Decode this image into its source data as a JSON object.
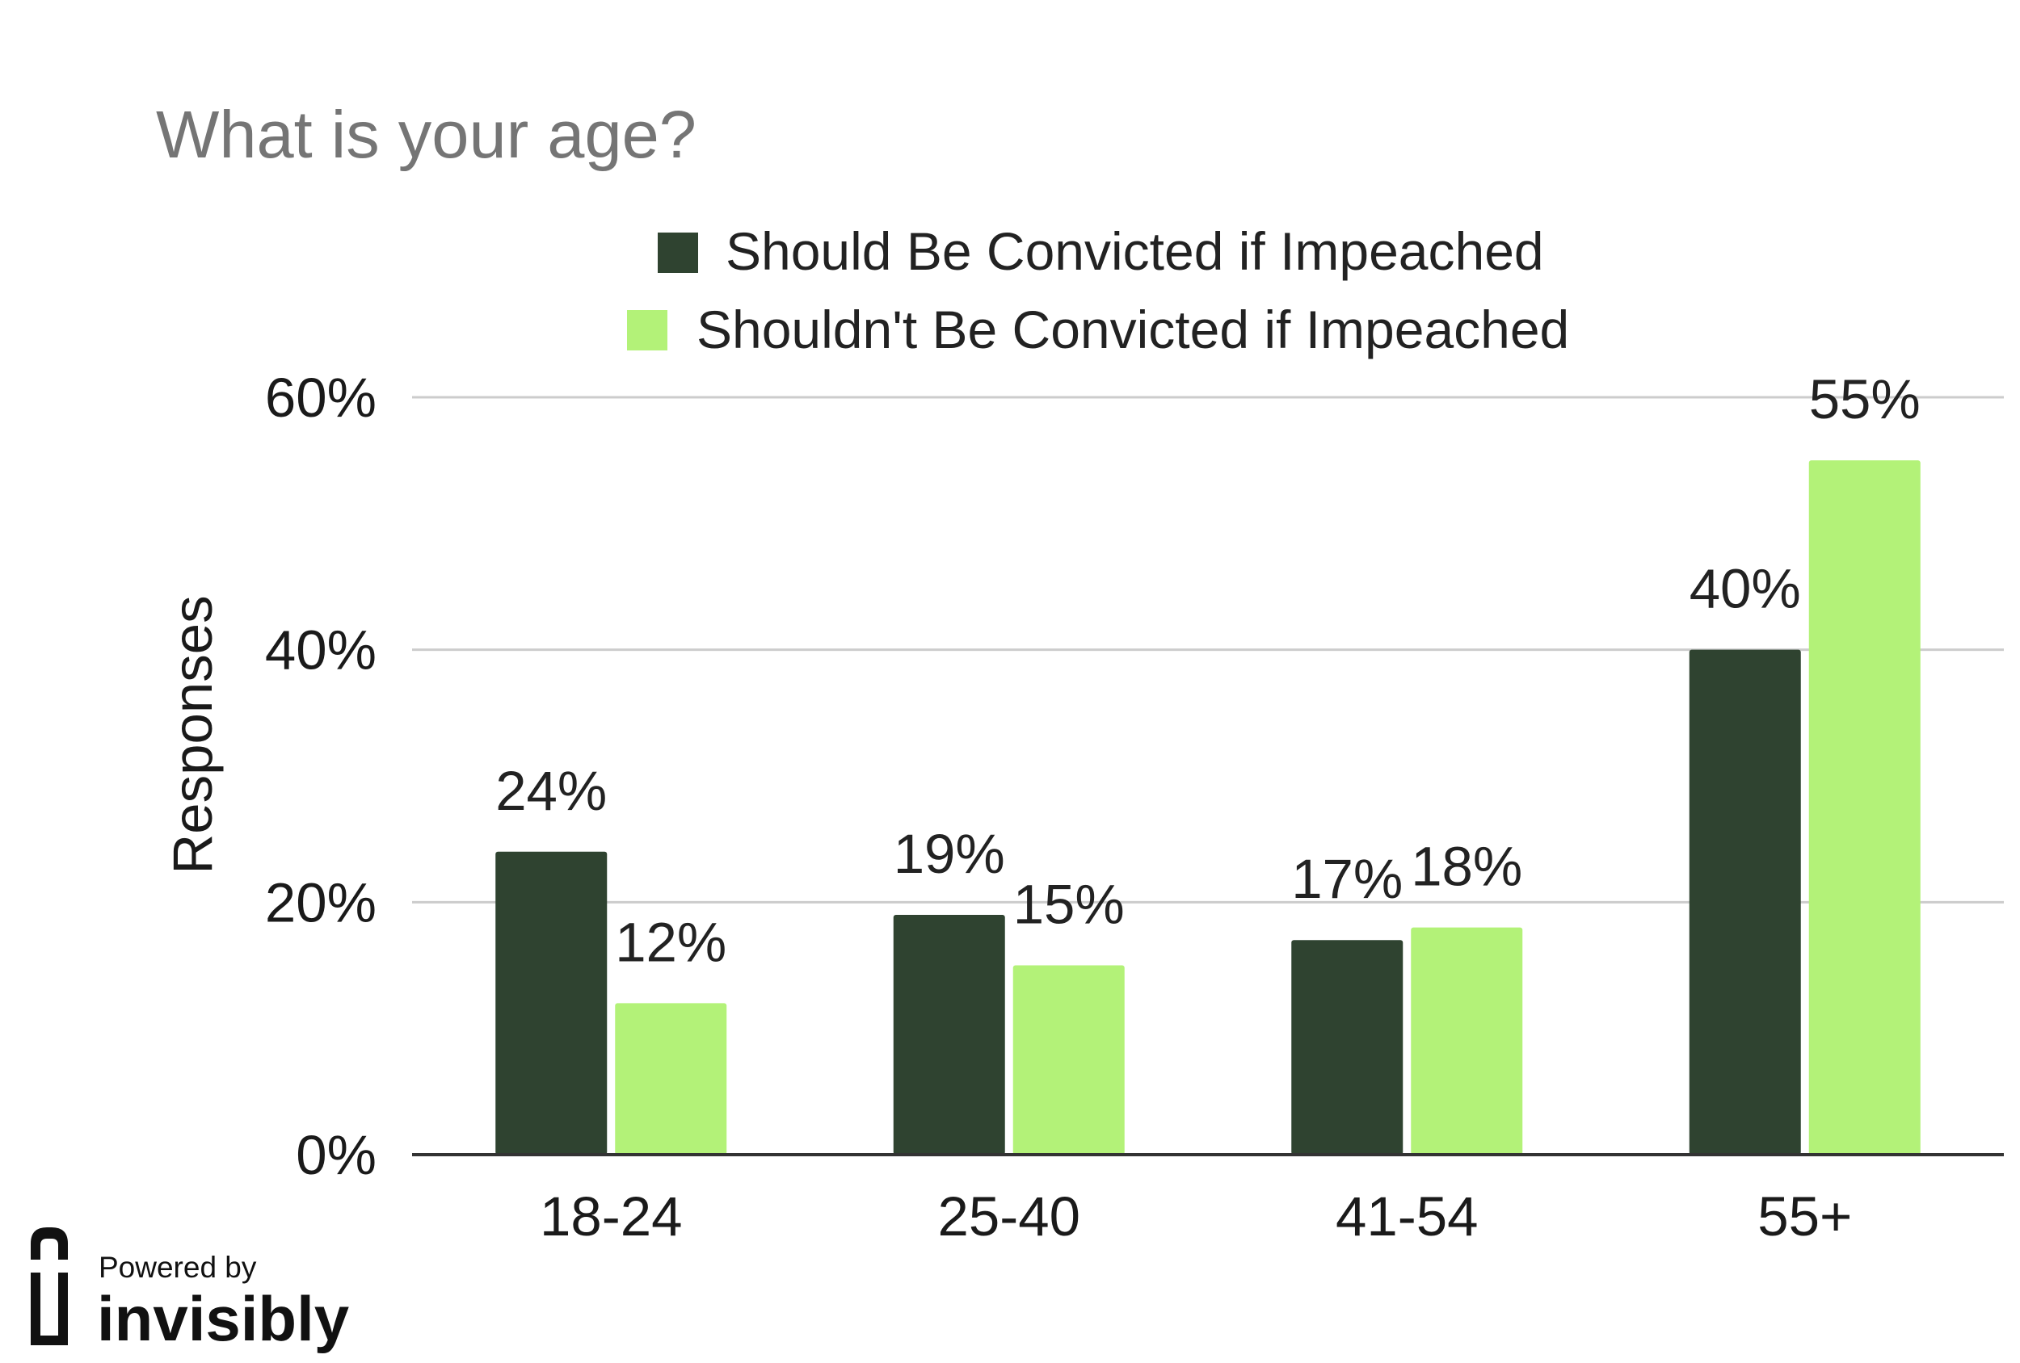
{
  "colors": {
    "series_0": "#2f4330",
    "series_1": "#b3f278",
    "grid": "#cccccc",
    "axis": "#333333"
  },
  "chart_data": {
    "type": "bar",
    "title": "What is your age?",
    "categories": [
      "18-24",
      "25-40",
      "41-54",
      "55+"
    ],
    "series": [
      {
        "name": "Should Be Convicted if Impeached",
        "values": [
          24,
          19,
          17,
          40
        ],
        "labels": [
          "24%",
          "19%",
          "17%",
          "40%"
        ]
      },
      {
        "name": "Shouldn't Be Convicted if Impeached",
        "values": [
          12,
          15,
          18,
          55
        ],
        "labels": [
          "12%",
          "15%",
          "18%",
          "55%"
        ]
      }
    ],
    "xlabel": "",
    "ylabel": "Responses",
    "ylim": [
      0,
      60
    ],
    "yticks": [
      0,
      20,
      40,
      60
    ],
    "ytick_labels": [
      "0%",
      "20%",
      "40%",
      "60%"
    ],
    "grid": true,
    "legend_position": "top"
  },
  "branding": {
    "line1": "Powered by",
    "line2": "invisibly",
    "icon": "invisibly-logo-icon"
  }
}
